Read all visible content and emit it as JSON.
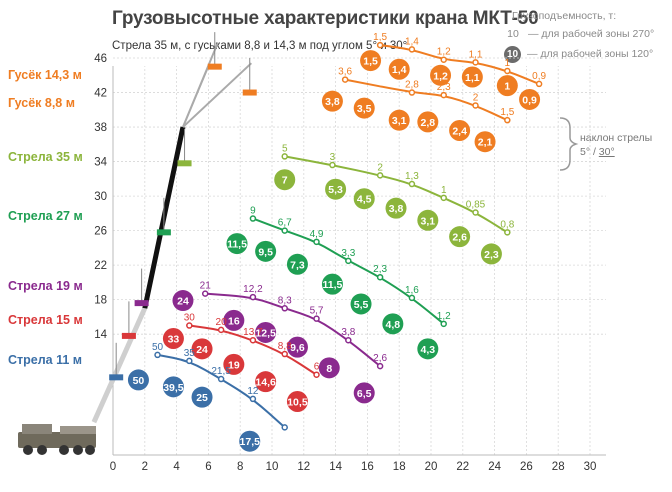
{
  "title": "Грузовысотные характеристики крана МКТ-50",
  "subtitle": "Стрела 35 м, с гуськами 8,8 и 14,3 м под углом 5° и 30°",
  "legend": {
    "title": "Грузоподъемность, т:",
    "rows": [
      {
        "symbol": "10",
        "style": "plain",
        "text": "— для рабочей зоны 270°"
      },
      {
        "symbol": "10",
        "style": "circle",
        "text": "— для рабочей зоны 120°"
      }
    ]
  },
  "inclination": {
    "label": "наклон стрелы",
    "vals_a": "5° / ",
    "vals_b": "30°"
  },
  "side_labels": [
    {
      "text": "Гусёк 14,3 м",
      "color": "#ef7d22"
    },
    {
      "text": "Гусёк 8,8 м",
      "color": "#ef7d22"
    },
    {
      "text": "Стрела 35 м",
      "color": "#8cb53c"
    },
    {
      "text": "Стрела 27 м",
      "color": "#1f9f53"
    },
    {
      "text": "Стрела 19 м",
      "color": "#8a2a8e"
    },
    {
      "text": "Стрела 15 м",
      "color": "#d9383a"
    },
    {
      "text": "Стрела 11 м",
      "color": "#3b6fa7"
    }
  ],
  "chart_data": {
    "type": "scatter",
    "xlabel": "",
    "ylabel": "",
    "xlim": [
      0,
      32
    ],
    "ylim": [
      0,
      48
    ],
    "x_ticks": [
      0,
      2,
      4,
      6,
      8,
      10,
      12,
      14,
      16,
      18,
      20,
      22,
      24,
      26,
      28,
      30
    ],
    "y_ticks": [
      14,
      18,
      22,
      26,
      30,
      34,
      38,
      42,
      46
    ],
    "grid": true,
    "series": [
      {
        "color": "#ef7d22",
        "points": [
          [
            16.8,
            47.5
          ],
          [
            18.8,
            47.0
          ],
          [
            20.8,
            45.8
          ],
          [
            22.8,
            45.5
          ],
          [
            24.8,
            44.5
          ],
          [
            26.8,
            43.0
          ]
        ],
        "labels_270": [
          "1,5",
          "1,4",
          "1,2",
          "1,1",
          "1",
          "0,9"
        ],
        "circles": [
          [
            16.2,
            45.7,
            "1,5"
          ],
          [
            18.0,
            44.7,
            "1,4"
          ],
          [
            20.6,
            44.0,
            "1,2"
          ],
          [
            22.6,
            43.8,
            "1,1"
          ],
          [
            24.8,
            42.8,
            "1"
          ],
          [
            26.2,
            41.2,
            "0,9"
          ]
        ]
      },
      {
        "color": "#ef7d22",
        "points": [
          [
            14.6,
            43.5
          ],
          [
            18.8,
            42.0
          ],
          [
            20.8,
            41.7
          ],
          [
            22.8,
            40.5
          ],
          [
            24.8,
            38.8
          ]
        ],
        "labels_270": [
          "3,6",
          "2,8",
          "2,3",
          "2",
          "1,5"
        ],
        "circles": [
          [
            13.8,
            41.0,
            "3,8"
          ],
          [
            15.8,
            40.2,
            "3,5"
          ],
          [
            18.0,
            38.8,
            "3,1"
          ],
          [
            19.8,
            38.6,
            "2,8"
          ],
          [
            21.8,
            37.6,
            "2,4"
          ],
          [
            23.4,
            36.3,
            "2,1"
          ]
        ]
      },
      {
        "color": "#8cb53c",
        "points": [
          [
            10.8,
            34.6
          ],
          [
            13.8,
            33.6
          ],
          [
            16.8,
            32.4
          ],
          [
            18.8,
            31.4
          ],
          [
            20.8,
            29.8
          ],
          [
            22.8,
            28.1
          ],
          [
            24.8,
            25.8
          ]
        ],
        "labels_270": [
          "5",
          "3",
          "2",
          "1,3",
          "1",
          "0,85",
          "0,8"
        ],
        "circles": [
          [
            10.8,
            31.9,
            "7"
          ],
          [
            14.0,
            30.8,
            "5,3"
          ],
          [
            15.8,
            29.7,
            "4,5"
          ],
          [
            17.8,
            28.6,
            "3,8"
          ],
          [
            19.8,
            27.2,
            "3,1"
          ],
          [
            21.8,
            25.3,
            "2,6"
          ],
          [
            23.8,
            23.3,
            "2,3"
          ]
        ]
      },
      {
        "color": "#1f9f53",
        "points": [
          [
            8.8,
            27.4
          ],
          [
            10.8,
            26.0
          ],
          [
            12.8,
            24.7
          ],
          [
            14.8,
            22.5
          ],
          [
            16.8,
            20.6
          ],
          [
            18.8,
            18.2
          ],
          [
            20.8,
            15.2
          ]
        ],
        "labels_270": [
          "9",
          "6,7",
          "4,9",
          "3,3",
          "2,3",
          "1,6",
          "1,2"
        ],
        "circles": [
          [
            7.8,
            24.5,
            "11,5"
          ],
          [
            9.6,
            23.6,
            "9,5"
          ],
          [
            11.6,
            22.1,
            "7,3"
          ],
          [
            13.8,
            19.8,
            "11,5"
          ],
          [
            15.6,
            17.5,
            "5,5"
          ],
          [
            17.6,
            15.2,
            "4,8"
          ],
          [
            19.8,
            12.3,
            "4,3"
          ]
        ]
      },
      {
        "color": "#8a2a8e",
        "points": [
          [
            5.8,
            18.7
          ],
          [
            8.8,
            18.3
          ],
          [
            10.8,
            17.0
          ],
          [
            12.8,
            15.8
          ],
          [
            14.8,
            13.3
          ],
          [
            16.8,
            10.3
          ]
        ],
        "labels_270": [
          "21",
          "12,2",
          "8,3",
          "5,7",
          "3,8",
          "2,6"
        ],
        "circles": [
          [
            4.4,
            17.9,
            "24"
          ],
          [
            7.6,
            15.6,
            "16"
          ],
          [
            9.6,
            14.2,
            "12,5"
          ],
          [
            11.6,
            12.5,
            "9,6"
          ],
          [
            13.6,
            10.1,
            "8"
          ],
          [
            15.8,
            7.2,
            "6,5"
          ]
        ]
      },
      {
        "color": "#d9383a",
        "points": [
          [
            4.8,
            15.0
          ],
          [
            6.8,
            14.5
          ],
          [
            8.8,
            13.3
          ],
          [
            10.8,
            11.7
          ],
          [
            12.8,
            9.3
          ]
        ],
        "labels_270": [
          "30",
          "20",
          "13,7",
          "8,8",
          "6"
        ],
        "circles": [
          [
            3.8,
            13.5,
            "33"
          ],
          [
            5.6,
            12.3,
            "24"
          ],
          [
            7.6,
            10.5,
            "19"
          ],
          [
            9.6,
            8.5,
            "14,6"
          ],
          [
            11.6,
            6.2,
            "10,5"
          ]
        ]
      },
      {
        "color": "#3b6fa7",
        "points": [
          [
            2.8,
            11.6
          ],
          [
            4.8,
            10.9
          ],
          [
            6.8,
            8.8
          ],
          [
            8.8,
            6.5
          ],
          [
            10.8,
            3.2
          ]
        ],
        "labels_270": [
          "50",
          "35",
          "21,5",
          "12",
          ""
        ],
        "circles": [
          [
            1.6,
            8.7,
            "50"
          ],
          [
            3.8,
            7.9,
            "39,5"
          ],
          [
            5.6,
            6.7,
            "25"
          ],
          [
            8.6,
            1.6,
            "17,5"
          ]
        ]
      }
    ]
  }
}
